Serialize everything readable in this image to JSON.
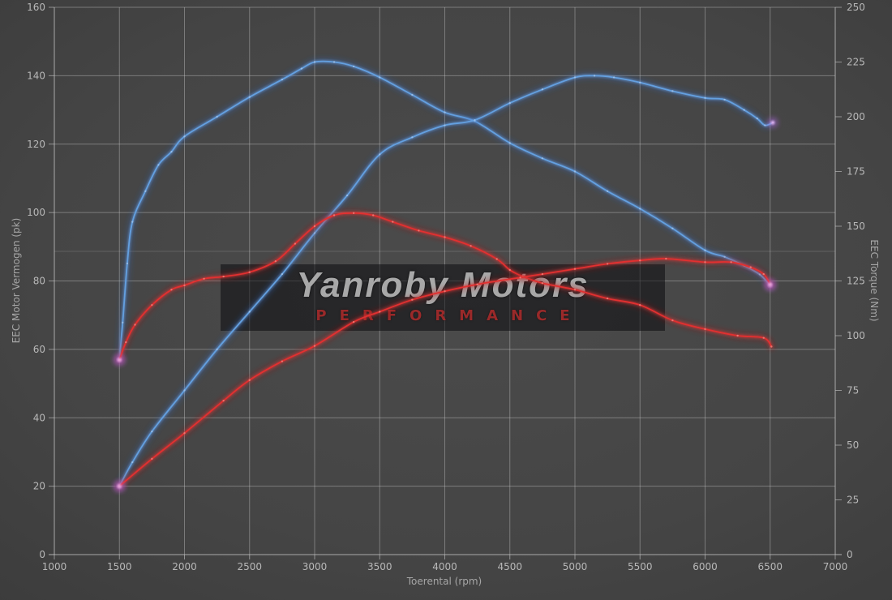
{
  "watermark": {
    "title": "Yanroby Motors",
    "subtitle": "PERFORMANCE"
  },
  "colors": {
    "background_center": "#4b4b4b",
    "background_edge": "#272727",
    "grid": "#c8c8c8",
    "tick_text": "#b8b8b8",
    "axis_title_text": "#a6a6a6",
    "blue_core": "#64a0e0",
    "blue_glow": "#2f62b8",
    "red_core": "#e23030",
    "red_glow": "#a81818",
    "endpoint_glow": "#c05fd0",
    "watermark_box": "rgba(8,8,11,0.52)",
    "watermark_title": "#c9c9c9",
    "watermark_subtitle": "#bc2e2e"
  },
  "chart_data": {
    "type": "line",
    "title": "",
    "legend": "none",
    "grid": "on",
    "x": {
      "label": "Toerental (rpm)",
      "min": 1000,
      "max": 7000,
      "ticks": [
        1000,
        1500,
        2000,
        2500,
        3000,
        3500,
        4000,
        4500,
        5000,
        5500,
        6000,
        6500,
        7000
      ]
    },
    "y_left": {
      "label": "EEC Motor Vermogen (pk)",
      "min": 0,
      "max": 160,
      "ticks": [
        0,
        20,
        40,
        60,
        80,
        100,
        120,
        140,
        160
      ]
    },
    "y_right": {
      "label": "EEC Torque (Nm)",
      "min": 0,
      "max": 250,
      "ticks": [
        0,
        25,
        50,
        75,
        100,
        125,
        150,
        175,
        200,
        225,
        250
      ]
    },
    "series": [
      {
        "name": "torque-blue-tuned",
        "color": "blue",
        "unit": "Nm",
        "axis": "y_right",
        "start_glow": true,
        "end_glow": true,
        "points": [
          [
            1500,
            89
          ],
          [
            1525,
            106
          ],
          [
            1560,
            133
          ],
          [
            1600,
            152
          ],
          [
            1700,
            166
          ],
          [
            1800,
            178
          ],
          [
            1900,
            184
          ],
          [
            2000,
            191
          ],
          [
            2250,
            200
          ],
          [
            2500,
            209
          ],
          [
            2750,
            217
          ],
          [
            2900,
            222
          ],
          [
            3000,
            225
          ],
          [
            3150,
            225
          ],
          [
            3300,
            223
          ],
          [
            3500,
            218
          ],
          [
            3750,
            210
          ],
          [
            4000,
            202
          ],
          [
            4230,
            198
          ],
          [
            4500,
            188
          ],
          [
            4750,
            181
          ],
          [
            5000,
            175
          ],
          [
            5250,
            166
          ],
          [
            5500,
            158
          ],
          [
            5750,
            149
          ],
          [
            6000,
            139
          ],
          [
            6150,
            136
          ],
          [
            6300,
            132
          ],
          [
            6420,
            128
          ],
          [
            6500,
            123
          ]
        ]
      },
      {
        "name": "power-blue-tuned",
        "color": "blue",
        "unit": "pk",
        "axis": "y_left",
        "start_glow": true,
        "end_glow": true,
        "points": [
          [
            1500,
            20
          ],
          [
            1600,
            27
          ],
          [
            1750,
            36
          ],
          [
            2000,
            48
          ],
          [
            2250,
            60
          ],
          [
            2500,
            71
          ],
          [
            2750,
            82
          ],
          [
            3000,
            94
          ],
          [
            3250,
            105
          ],
          [
            3500,
            117
          ],
          [
            3750,
            122
          ],
          [
            4000,
            125.5
          ],
          [
            4230,
            127
          ],
          [
            4500,
            132
          ],
          [
            4750,
            136
          ],
          [
            5000,
            139.5
          ],
          [
            5150,
            140
          ],
          [
            5300,
            139.5
          ],
          [
            5500,
            138
          ],
          [
            5750,
            135.5
          ],
          [
            6000,
            133.5
          ],
          [
            6150,
            133
          ],
          [
            6300,
            130
          ],
          [
            6400,
            127.5
          ],
          [
            6460,
            125.5
          ],
          [
            6520,
            126.3
          ]
        ]
      },
      {
        "name": "torque-red-original",
        "color": "red",
        "unit": "Nm",
        "axis": "y_right",
        "start_glow": true,
        "end_glow": false,
        "points": [
          [
            1500,
            89
          ],
          [
            1550,
            97
          ],
          [
            1620,
            105
          ],
          [
            1750,
            114
          ],
          [
            1900,
            121
          ],
          [
            2000,
            123
          ],
          [
            2150,
            126
          ],
          [
            2300,
            127
          ],
          [
            2500,
            129
          ],
          [
            2700,
            134
          ],
          [
            2850,
            142
          ],
          [
            3000,
            150
          ],
          [
            3150,
            155
          ],
          [
            3300,
            156
          ],
          [
            3450,
            155
          ],
          [
            3600,
            152
          ],
          [
            3800,
            148
          ],
          [
            4000,
            145
          ],
          [
            4200,
            141
          ],
          [
            4400,
            135
          ],
          [
            4500,
            130
          ],
          [
            4600,
            127
          ],
          [
            4750,
            124
          ],
          [
            5000,
            121
          ],
          [
            5250,
            117
          ],
          [
            5500,
            114
          ],
          [
            5750,
            107
          ],
          [
            6000,
            103
          ],
          [
            6250,
            100
          ],
          [
            6450,
            99
          ],
          [
            6510,
            95
          ]
        ]
      },
      {
        "name": "power-red-original",
        "color": "red",
        "unit": "pk",
        "axis": "y_left",
        "start_glow": true,
        "end_glow": true,
        "points": [
          [
            1500,
            20
          ],
          [
            1750,
            28
          ],
          [
            2000,
            35.5
          ],
          [
            2300,
            45
          ],
          [
            2500,
            51
          ],
          [
            2750,
            56.5
          ],
          [
            3000,
            61
          ],
          [
            3300,
            68
          ],
          [
            3500,
            71
          ],
          [
            3750,
            74.5
          ],
          [
            4000,
            77
          ],
          [
            4250,
            79
          ],
          [
            4580,
            81
          ],
          [
            4750,
            82
          ],
          [
            5000,
            83.5
          ],
          [
            5250,
            85
          ],
          [
            5500,
            86
          ],
          [
            5700,
            86.5
          ],
          [
            6000,
            85.5
          ],
          [
            6200,
            85.5
          ],
          [
            6350,
            84
          ],
          [
            6450,
            82
          ],
          [
            6500,
            79
          ]
        ]
      }
    ]
  }
}
